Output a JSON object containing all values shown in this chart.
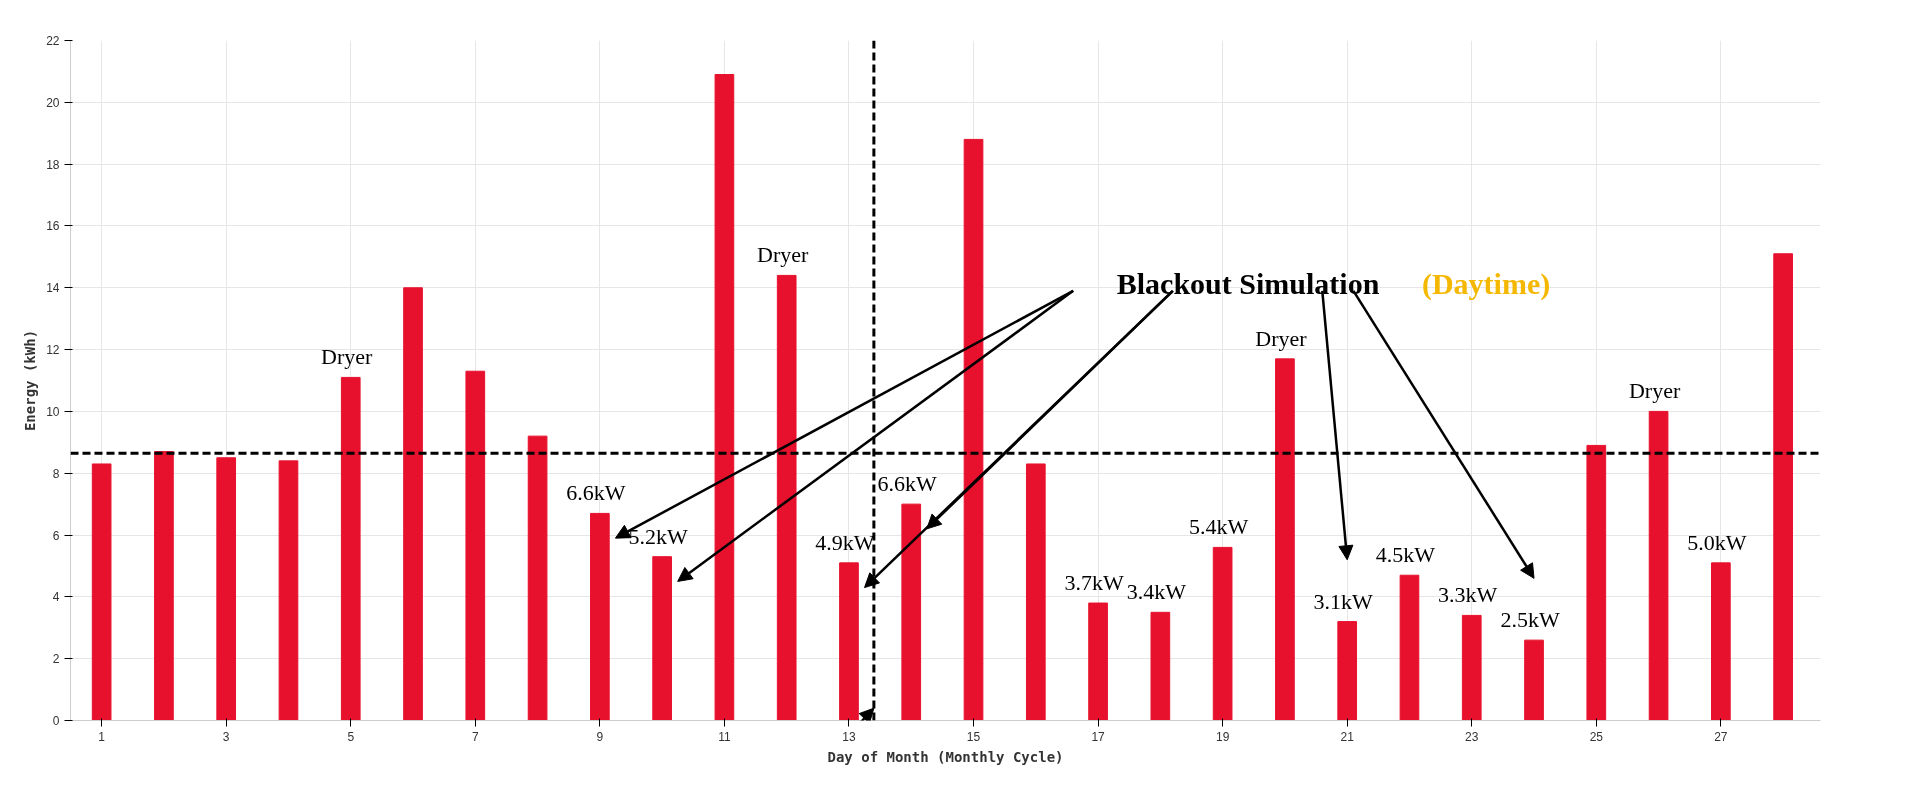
{
  "chart_data": {
    "type": "bar",
    "xlabel": "Day of Month (Monthly Cycle)",
    "ylabel": "Energy (kWh)",
    "x": [
      1,
      2,
      3,
      4,
      5,
      6,
      7,
      8,
      9,
      10,
      11,
      12,
      13,
      14,
      15,
      16,
      17,
      18,
      19,
      20,
      21,
      22,
      23,
      24,
      25,
      26,
      27,
      28
    ],
    "values": [
      8.3,
      8.7,
      8.5,
      8.4,
      11.1,
      14.0,
      11.3,
      9.2,
      6.7,
      5.3,
      20.9,
      14.4,
      5.1,
      7.0,
      18.8,
      8.3,
      3.8,
      3.5,
      5.6,
      11.7,
      3.2,
      4.7,
      3.4,
      2.6,
      8.9,
      10.0,
      5.1,
      15.1
    ],
    "color": "#e8112d",
    "xlim": [
      0.5,
      28.6
    ],
    "xticks": [
      1,
      3,
      5,
      7,
      9,
      11,
      13,
      15,
      17,
      19,
      21,
      23,
      25,
      27
    ],
    "ylim": [
      0,
      22
    ],
    "yticks": [
      0,
      2,
      4,
      6,
      8,
      10,
      12,
      14,
      16,
      18,
      20,
      22
    ],
    "grid": true,
    "ref_lines": [
      {
        "axis": "y",
        "value": 8.65,
        "color": "#000000",
        "line_style": "dashed"
      },
      {
        "axis": "x",
        "value": 13.4,
        "color": "#000000",
        "line_style": "dashed"
      }
    ],
    "annotations": [
      {
        "text": "Dryer",
        "x": 5,
        "y": 11.1
      },
      {
        "text": "Dryer",
        "x": 12,
        "y": 14.4
      },
      {
        "text": "Dryer",
        "x": 20,
        "y": 11.7
      },
      {
        "text": "Dryer",
        "x": 26,
        "y": 10.0
      },
      {
        "text": "6.6kW",
        "x": 9,
        "y": 6.7
      },
      {
        "text": "5.2kW",
        "x": 10,
        "y": 5.3
      },
      {
        "text": "4.9kW",
        "x": 13,
        "y": 5.1
      },
      {
        "text": "6.6kW",
        "x": 14,
        "y": 7.0
      },
      {
        "text": "3.7kW",
        "x": 17,
        "y": 3.8
      },
      {
        "text": "3.4kW",
        "x": 18,
        "y": 3.5
      },
      {
        "text": "5.4kW",
        "x": 19,
        "y": 5.6
      },
      {
        "text": "3.1kW",
        "x": 21,
        "y": 3.2
      },
      {
        "text": "4.5kW",
        "x": 22,
        "y": 4.7
      },
      {
        "text": "3.3kW",
        "x": 23,
        "y": 3.4
      },
      {
        "text": "2.5kW",
        "x": 24,
        "y": 2.6
      },
      {
        "text": "5.0kW",
        "x": 27,
        "y": 5.1
      },
      "Blackout Simulation",
      "(Daytime)"
    ]
  }
}
